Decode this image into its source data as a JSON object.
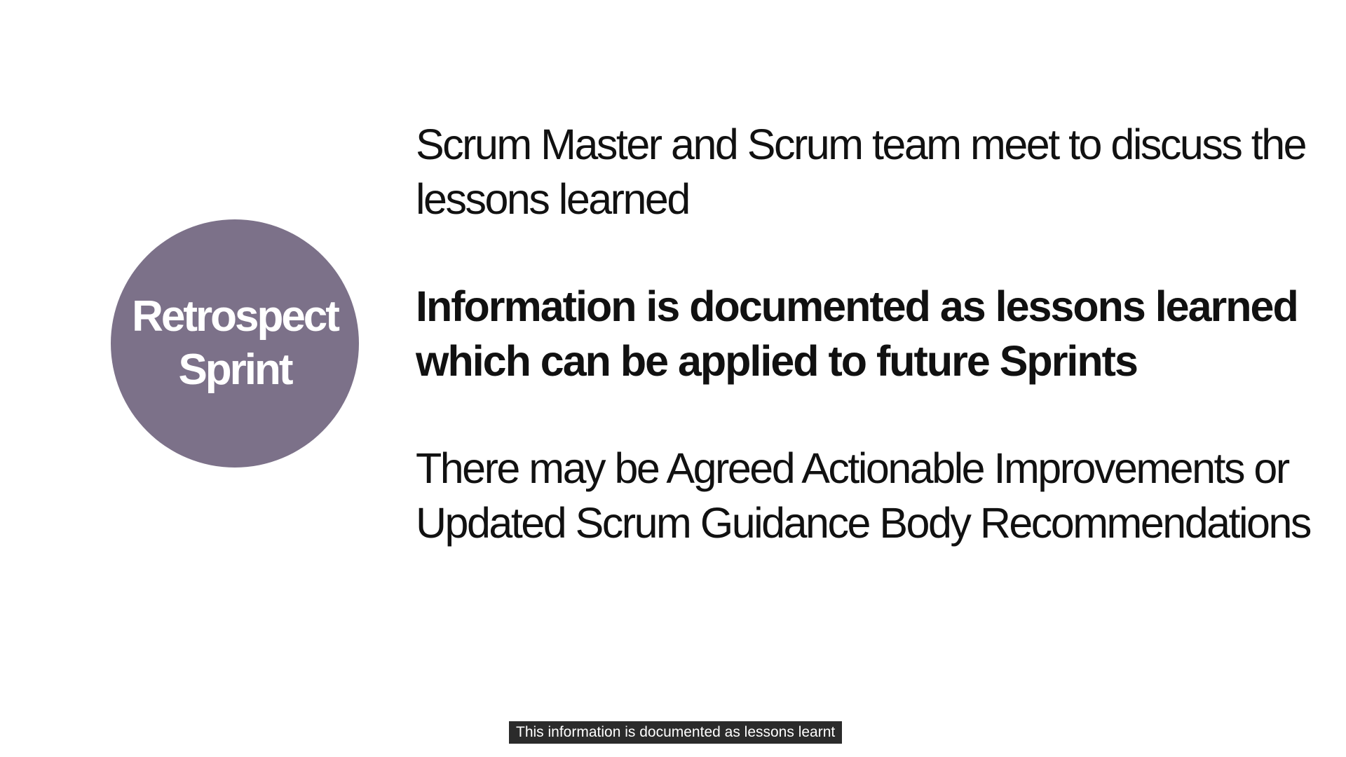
{
  "circle": {
    "line1": "Retrospect",
    "line2": "Sprint"
  },
  "points": [
    "Scrum Master and Scrum team meet to discuss the lessons learned",
    "Information is documented as lessons learned which can be applied to future Sprints",
    "There may be Agreed Actionable Improvements or Updated Scrum Guidance Body Recommendations"
  ],
  "caption": "This information is documented as lessons learnt",
  "colors": {
    "circle": "#7c7189",
    "text": "#111111",
    "caption_bg": "#2b2b2b",
    "background": "#ffffff"
  }
}
